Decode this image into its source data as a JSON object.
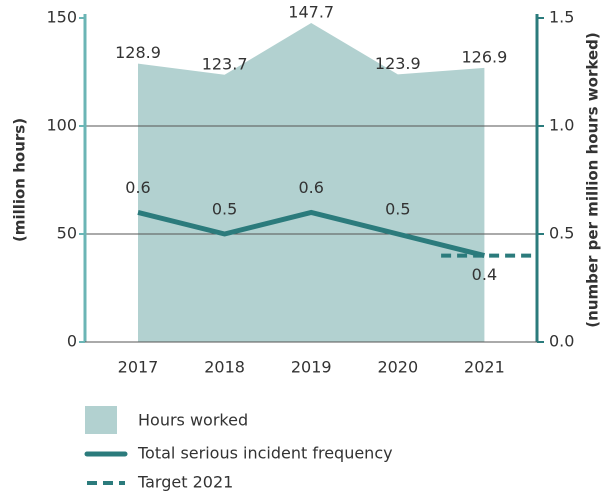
{
  "chart_data": {
    "type": "area_line",
    "categories": [
      "2017",
      "2018",
      "2019",
      "2020",
      "2021"
    ],
    "ylabel": "(million hours)",
    "y2label": "(number per million hours worked)",
    "ylim": [
      0,
      150
    ],
    "yticks": [
      0,
      50,
      100,
      150
    ],
    "y2lim": [
      0,
      1.5
    ],
    "y2ticks": [
      {
        "value": 0,
        "label": "0.0"
      },
      0.5,
      {
        "value": 1,
        "label": "1.0"
      },
      1.5
    ],
    "grid": true,
    "series": [
      {
        "name": "Hours worked",
        "type": "area",
        "color": "#b2d1d0",
        "values": [
          128.9,
          123.7,
          147.7,
          123.9,
          126.9
        ]
      },
      {
        "name": "Total serious incident frequency",
        "type": "line",
        "axis": "y2",
        "color": "#2b7b7c",
        "values": [
          0.6,
          0.5,
          0.6,
          0.5,
          0.4
        ]
      }
    ],
    "target": {
      "name": "Target 2021",
      "value": 0.4,
      "axis": "y2",
      "color": "#2b7b7c",
      "style": "dashed"
    }
  }
}
